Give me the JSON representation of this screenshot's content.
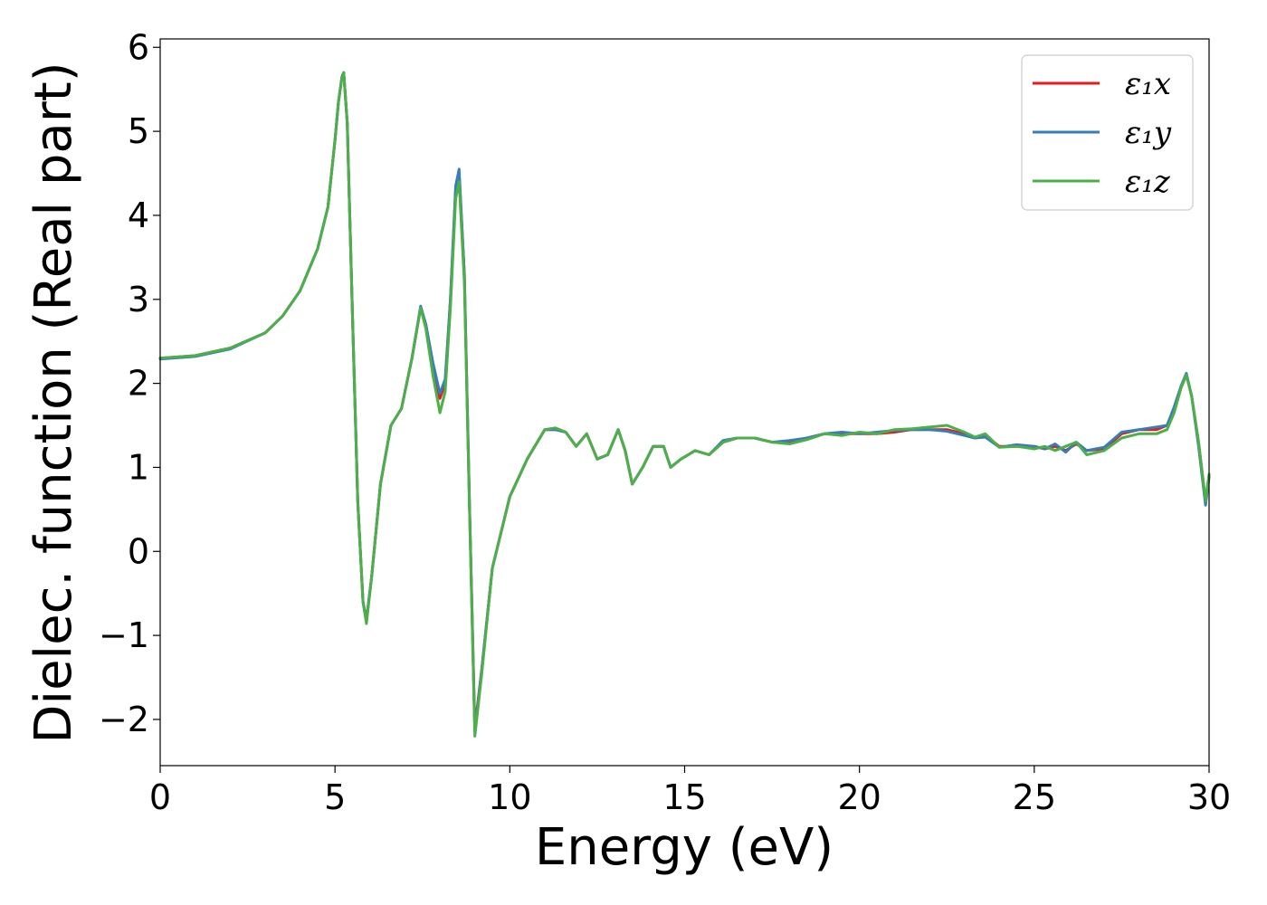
{
  "chart_data": {
    "type": "line",
    "xlabel": "Energy (eV)",
    "ylabel": "Dielec. function (Real part)",
    "xlim": [
      0,
      30
    ],
    "ylim": [
      -2.55,
      6.1
    ],
    "xticks": [
      0,
      5,
      10,
      15,
      20,
      25,
      30
    ],
    "xtick_labels": [
      "0",
      "5",
      "10",
      "15",
      "20",
      "25",
      "30"
    ],
    "yticks": [
      -2,
      -1,
      0,
      1,
      2,
      3,
      4,
      5,
      6
    ],
    "ytick_labels": [
      "−2",
      "−1",
      "0",
      "1",
      "2",
      "3",
      "4",
      "5",
      "6"
    ],
    "grid": false,
    "legend_position": "top-right",
    "x": [
      0,
      1,
      2,
      3,
      3.5,
      4,
      4.5,
      4.8,
      5.0,
      5.1,
      5.2,
      5.25,
      5.35,
      5.5,
      5.65,
      5.8,
      5.9,
      6.05,
      6.3,
      6.6,
      6.9,
      7.2,
      7.45,
      7.6,
      7.8,
      8.0,
      8.15,
      8.3,
      8.45,
      8.55,
      8.7,
      8.85,
      9.0,
      9.2,
      9.5,
      10.0,
      10.5,
      11.0,
      11.3,
      11.6,
      11.9,
      12.2,
      12.5,
      12.8,
      13.1,
      13.3,
      13.5,
      13.8,
      14.1,
      14.4,
      14.6,
      14.9,
      15.3,
      15.7,
      16.1,
      16.5,
      17.0,
      17.5,
      18.0,
      18.5,
      19.0,
      19.5,
      20.0,
      20.5,
      21.0,
      21.5,
      22.0,
      22.5,
      23.0,
      23.3,
      23.6,
      24.0,
      24.5,
      25.0,
      25.3,
      25.6,
      25.9,
      26.2,
      26.5,
      27.0,
      27.5,
      28.0,
      28.5,
      28.8,
      29.0,
      29.2,
      29.35,
      29.5,
      29.7,
      29.9,
      30.0
    ],
    "series": [
      {
        "name": "ε₁x",
        "color": "#e41a1c",
        "values": [
          2.3,
          2.33,
          2.42,
          2.6,
          2.8,
          3.1,
          3.6,
          4.1,
          4.9,
          5.35,
          5.65,
          5.7,
          5.1,
          2.8,
          0.6,
          -0.6,
          -0.82,
          -0.3,
          0.8,
          1.5,
          1.7,
          2.3,
          2.9,
          2.7,
          2.2,
          1.82,
          2.0,
          3.0,
          4.3,
          4.5,
          3.3,
          0.5,
          -2.1,
          -1.4,
          -0.2,
          0.65,
          1.1,
          1.45,
          1.45,
          1.42,
          1.25,
          1.4,
          1.1,
          1.15,
          1.45,
          1.2,
          0.8,
          1.0,
          1.25,
          1.25,
          1.0,
          1.1,
          1.2,
          1.15,
          1.3,
          1.35,
          1.35,
          1.3,
          1.3,
          1.35,
          1.4,
          1.4,
          1.4,
          1.4,
          1.42,
          1.45,
          1.45,
          1.45,
          1.4,
          1.35,
          1.38,
          1.25,
          1.25,
          1.25,
          1.22,
          1.25,
          1.2,
          1.28,
          1.2,
          1.22,
          1.4,
          1.45,
          1.45,
          1.5,
          1.7,
          1.95,
          2.1,
          1.85,
          1.3,
          0.6,
          0.9
        ]
      },
      {
        "name": "ε₁y",
        "color": "#377eb8",
        "values": [
          2.29,
          2.32,
          2.41,
          2.6,
          2.8,
          3.1,
          3.6,
          4.1,
          4.9,
          5.35,
          5.65,
          5.7,
          5.1,
          2.8,
          0.6,
          -0.6,
          -0.82,
          -0.3,
          0.8,
          1.5,
          1.7,
          2.3,
          2.92,
          2.7,
          2.25,
          1.88,
          2.05,
          3.0,
          4.35,
          4.55,
          3.3,
          0.5,
          -2.15,
          -1.4,
          -0.2,
          0.65,
          1.1,
          1.45,
          1.45,
          1.42,
          1.25,
          1.4,
          1.1,
          1.15,
          1.45,
          1.2,
          0.8,
          1.0,
          1.25,
          1.25,
          1.0,
          1.1,
          1.2,
          1.15,
          1.32,
          1.35,
          1.35,
          1.3,
          1.32,
          1.35,
          1.4,
          1.42,
          1.4,
          1.42,
          1.44,
          1.45,
          1.45,
          1.43,
          1.38,
          1.35,
          1.36,
          1.24,
          1.27,
          1.25,
          1.22,
          1.28,
          1.18,
          1.3,
          1.2,
          1.24,
          1.42,
          1.45,
          1.48,
          1.5,
          1.72,
          1.97,
          2.12,
          1.85,
          1.25,
          0.55,
          0.88
        ]
      },
      {
        "name": "ε₁z",
        "color": "#4daf4a",
        "values": [
          2.3,
          2.33,
          2.42,
          2.6,
          2.8,
          3.1,
          3.6,
          4.1,
          4.9,
          5.35,
          5.65,
          5.7,
          5.1,
          2.8,
          0.6,
          -0.6,
          -0.86,
          -0.3,
          0.8,
          1.5,
          1.7,
          2.3,
          2.9,
          2.65,
          2.1,
          1.65,
          1.9,
          2.9,
          4.2,
          4.4,
          3.2,
          0.45,
          -2.2,
          -1.45,
          -0.2,
          0.65,
          1.1,
          1.45,
          1.47,
          1.42,
          1.25,
          1.4,
          1.1,
          1.15,
          1.45,
          1.2,
          0.8,
          1.0,
          1.25,
          1.25,
          1.0,
          1.1,
          1.2,
          1.15,
          1.3,
          1.35,
          1.35,
          1.3,
          1.28,
          1.33,
          1.4,
          1.38,
          1.42,
          1.4,
          1.45,
          1.46,
          1.48,
          1.5,
          1.42,
          1.36,
          1.4,
          1.24,
          1.25,
          1.22,
          1.25,
          1.2,
          1.25,
          1.3,
          1.15,
          1.2,
          1.35,
          1.4,
          1.4,
          1.45,
          1.65,
          1.95,
          2.1,
          1.85,
          1.3,
          0.6,
          0.92
        ]
      }
    ]
  }
}
